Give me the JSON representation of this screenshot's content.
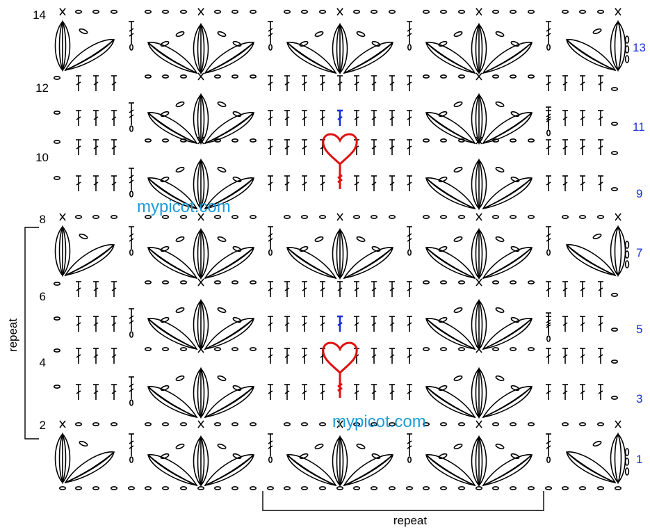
{
  "chart": {
    "rows_left": [
      "14",
      "12",
      "10",
      "8",
      "6",
      "4",
      "2"
    ],
    "rows_right": [
      "13",
      "11",
      "9",
      "7",
      "5",
      "3",
      "1"
    ],
    "repeat_vertical": "repeat",
    "repeat_horizontal": "repeat",
    "watermark_1": "mypicot.com",
    "watermark_2": "mypicot.com"
  },
  "colors": {
    "ink": "#000000",
    "right_row_numbers": "#1a2ed6",
    "heart": "#e01010",
    "highlight_blue": "#1a2ed6",
    "watermark": "#1e9bd7"
  },
  "symbols": {
    "chain": "chain-oval-symbol",
    "double_crochet": "double-crochet-symbol",
    "single_crochet": "single-crochet-x-symbol",
    "cluster_fan": "cluster-fan-symbol",
    "heart": "heart-motif-symbol"
  }
}
